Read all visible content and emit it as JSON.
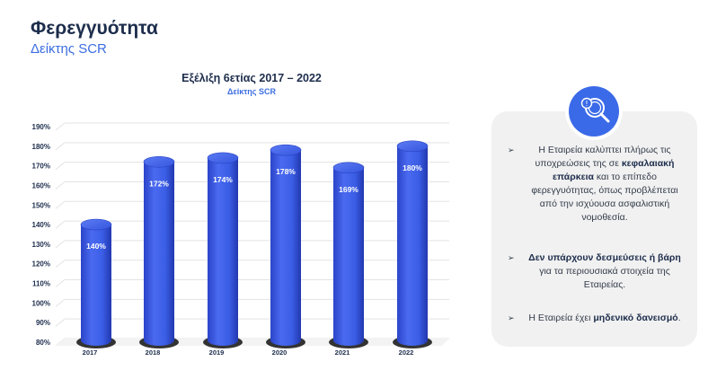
{
  "header": {
    "title": "Φερεγγυότητα",
    "subtitle": "Δείκτης SCR"
  },
  "chart_data": {
    "type": "bar",
    "title": "Εξέλιξη 6ετίας 2017 – 2022",
    "subtitle": "Δείκτης SCR",
    "categories": [
      "2017",
      "2018",
      "2019",
      "2020",
      "2021",
      "2022"
    ],
    "values": [
      140,
      172,
      174,
      178,
      169,
      180
    ],
    "data_labels": [
      "140%",
      "172%",
      "174%",
      "178%",
      "169%",
      "180%"
    ],
    "y_ticks": [
      "80%",
      "90%",
      "100%",
      "110%",
      "120%",
      "130%",
      "140%",
      "150%",
      "160%",
      "170%",
      "180%",
      "190%"
    ],
    "ylim": [
      80,
      190
    ],
    "grid": true,
    "bar_color": "#3b5ee6",
    "xlabel": "",
    "ylabel": ""
  },
  "panel": {
    "icon": "magnifier-info-icon",
    "accent_color": "#3b6ae8",
    "bullets": [
      [
        {
          "t": "Η Εταιρεία καλύπτει πλήρως τις υποχρεώσεις της σε ",
          "b": false
        },
        {
          "t": "κεφαλαιακή επάρκεια",
          "b": true
        },
        {
          "t": " και το επίπεδο φερεγγυότητας, όπως προβλέπεται από την ισχύουσα ασφαλιστική νομοθεσία.",
          "b": false
        }
      ],
      [
        {
          "t": "Δεν υπάρχουν δεσμεύσεις ή βάρη",
          "b": true
        },
        {
          "t": " για τα περιουσιακά στοιχεία της Εταιρείας.",
          "b": false
        }
      ],
      [
        {
          "t": "Η Εταιρεία έχει ",
          "b": false
        },
        {
          "t": "μηδενικό δανεισμό",
          "b": true
        },
        {
          "t": ".",
          "b": false
        }
      ]
    ]
  }
}
